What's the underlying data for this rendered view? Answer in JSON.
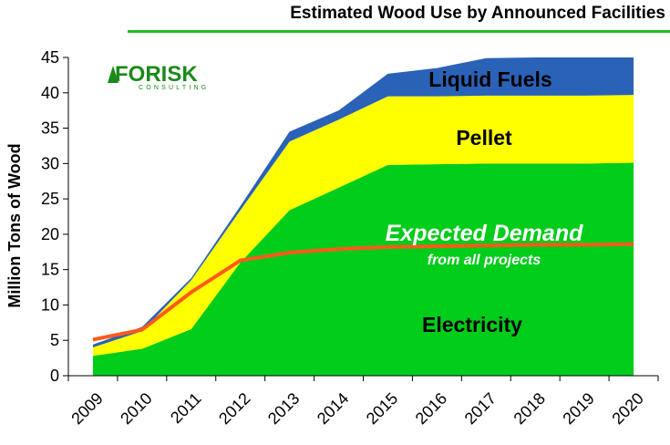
{
  "chart_title": "Estimated Wood Use by Announced Facilities",
  "logo": {
    "text": "FORISK",
    "subtext": "CONSULTING",
    "color": "#1a8a1a"
  },
  "chart_data": {
    "type": "area",
    "title": "Estimated Wood Use by Announced Facilities",
    "xlabel": "",
    "ylabel": "Million Tons of Wood",
    "x": [
      "2009",
      "2010",
      "2011",
      "2012",
      "2013",
      "2014",
      "2015",
      "2016",
      "2017",
      "2018",
      "2019",
      "2020"
    ],
    "ylim": [
      0,
      45
    ],
    "yticks": [
      0,
      5,
      10,
      15,
      20,
      25,
      30,
      35,
      40,
      45
    ],
    "grid": false,
    "stacked": true,
    "series": [
      {
        "name": "Electricity",
        "color": "#00cc1a",
        "values": [
          2.8,
          3.8,
          6.6,
          16.0,
          23.4,
          26.6,
          29.8,
          29.9,
          30.0,
          30.0,
          30.0,
          30.1
        ]
      },
      {
        "name": "Pellet",
        "color": "#ffff00",
        "values": [
          1.2,
          2.5,
          6.9,
          7.4,
          9.7,
          9.6,
          9.7,
          9.6,
          9.6,
          9.6,
          9.6,
          9.6
        ]
      },
      {
        "name": "Liquid Fuels",
        "color": "#2a62b8",
        "values": [
          0.4,
          0.6,
          0.3,
          0.6,
          1.4,
          1.3,
          3.2,
          4.0,
          5.3,
          5.4,
          5.4,
          5.3
        ]
      }
    ],
    "line": {
      "name": "Expected Demand",
      "sublabel": "from all projects",
      "color": "#ff5a1a",
      "values": [
        5.1,
        6.5,
        11.8,
        16.3,
        17.4,
        17.9,
        18.2,
        18.3,
        18.4,
        18.5,
        18.5,
        18.6
      ]
    },
    "annotations": [
      "Liquid Fuels",
      "Pellet",
      "Electricity",
      "Expected Demand",
      "from all projects"
    ]
  }
}
